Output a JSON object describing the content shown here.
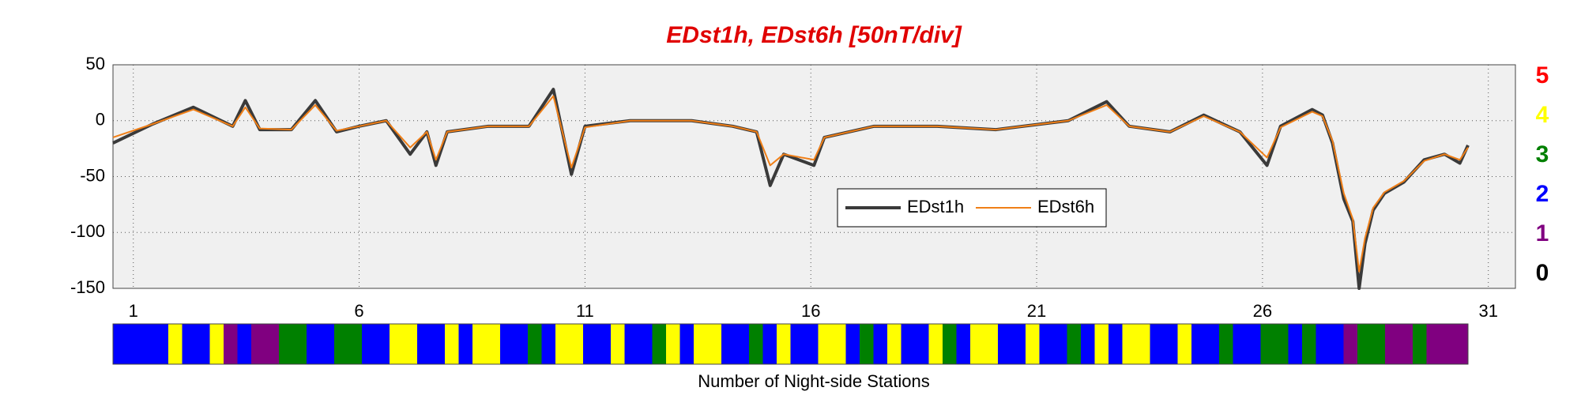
{
  "chart_data": {
    "type": "line",
    "title": "EDst1h, EDst6h [50nT/div]",
    "x": [
      0.55,
      1.43,
      2.33,
      3.2,
      3.48,
      3.8,
      4.5,
      5.03,
      5.5,
      6.0,
      6.6,
      7.13,
      7.5,
      7.7,
      7.95,
      8.86,
      9.76,
      10.3,
      10.7,
      11.0,
      12.0,
      13.36,
      14.27,
      14.8,
      15.1,
      15.4,
      16.07,
      16.3,
      17.4,
      18.8,
      20.1,
      21.7,
      22.55,
      23.05,
      23.95,
      24.7,
      25.5,
      26.1,
      26.4,
      27.1,
      27.33,
      27.55,
      27.8,
      28.0,
      28.14,
      28.27,
      28.45,
      28.7,
      29.13,
      29.58,
      30.03,
      30.37,
      30.55
    ],
    "series": [
      {
        "name": "EDst1h",
        "color": "#3a3a3a",
        "values": [
          -20,
          -3,
          12,
          -5,
          18,
          -8,
          -8,
          18,
          -10,
          -5,
          0,
          -30,
          -10,
          -40,
          -10,
          -5,
          -5,
          28,
          -48,
          -5,
          0,
          0,
          -5,
          -10,
          -58,
          -30,
          -40,
          -15,
          -5,
          -5,
          -8,
          0,
          17,
          -5,
          -10,
          5,
          -10,
          -40,
          -5,
          10,
          5,
          -20,
          -70,
          -90,
          -150,
          -110,
          -80,
          -65,
          -55,
          -35,
          -30,
          -38,
          -22
        ]
      },
      {
        "name": "EDst6h",
        "color": "#f07f17",
        "values": [
          -15,
          -3,
          10,
          -5,
          12,
          -7,
          -8,
          14,
          -9,
          -5,
          0,
          -24,
          -10,
          -35,
          -10,
          -5,
          -5,
          22,
          -42,
          -6,
          0,
          0,
          -5,
          -10,
          -40,
          -30,
          -35,
          -15,
          -5,
          -5,
          -8,
          0,
          14,
          -5,
          -10,
          4,
          -10,
          -33,
          -6,
          8,
          4,
          -18,
          -65,
          -88,
          -135,
          -105,
          -78,
          -64,
          -54,
          -36,
          -30,
          -35,
          -24
        ]
      }
    ],
    "xlim": [
      0.55,
      31.6
    ],
    "ylim": [
      -150,
      50
    ],
    "xticks": [
      1,
      6,
      11,
      16,
      21,
      26,
      31
    ],
    "yticks": [
      -150,
      -100,
      -50,
      0,
      50
    ],
    "grid": true,
    "legend": "center",
    "colorbar": {
      "label": "Number of Night-side Stations",
      "levels": [
        5,
        4,
        3,
        2,
        1,
        0
      ],
      "colors": [
        "#ff0000",
        "#ffff00",
        "#008000",
        "#0000ff",
        "#800080",
        "#000000"
      ],
      "values": [
        2,
        2,
        2,
        2,
        4,
        2,
        2,
        4,
        1,
        2,
        1,
        1,
        3,
        3,
        2,
        2,
        3,
        3,
        2,
        2,
        4,
        4,
        2,
        2,
        4,
        2,
        4,
        4,
        2,
        2,
        3,
        2,
        4,
        4,
        2,
        2,
        4,
        2,
        2,
        3,
        4,
        2,
        4,
        4,
        2,
        2,
        3,
        2,
        4,
        2,
        2,
        4,
        4,
        2,
        3,
        2,
        4,
        2,
        2,
        4,
        3,
        2,
        4,
        4,
        2,
        2,
        4,
        2,
        2,
        3,
        2,
        4,
        2,
        4,
        4,
        2,
        2,
        4,
        2,
        2,
        3,
        2,
        2,
        3,
        3,
        2,
        3,
        2,
        2,
        1,
        3,
        3,
        1,
        1,
        3,
        1,
        1,
        1
      ]
    }
  }
}
